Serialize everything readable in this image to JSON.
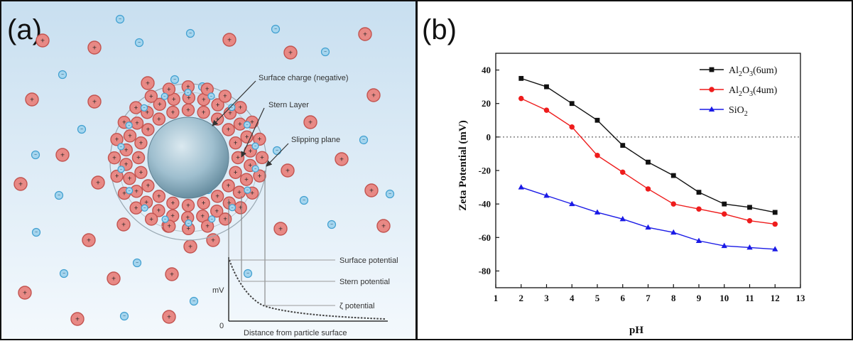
{
  "panels": {
    "a_label": "(a)",
    "b_label": "(b)"
  },
  "diagram": {
    "labels": {
      "surface_charge": "Surface charge (negative)",
      "stern_layer": "Stern Layer",
      "slipping_plane": "Slipping plane",
      "surface_potential": "Surface potential",
      "stern_potential": "Stern potential",
      "zeta_potential": "ζ potential",
      "mv": "mV",
      "zero": "0",
      "distance": "Distance from particle surface"
    },
    "plus_sign": "+",
    "minus_sign": "−",
    "colors": {
      "background_top": "#c8dff0",
      "background_bottom": "#f4f9fd",
      "cation_fill": "#e88985",
      "cation_ring": "#c25450",
      "anion_fill": "#a5d5ee",
      "anion_ring": "#3f9fd0",
      "particle": "#8fb3c4"
    }
  },
  "chart_data": {
    "type": "line",
    "title": "",
    "xlabel": "pH",
    "ylabel": "Zeta Potential (mV)",
    "xlim": [
      1,
      13
    ],
    "ylim": [
      -90,
      50
    ],
    "x_ticks": [
      1,
      2,
      3,
      4,
      5,
      6,
      7,
      8,
      9,
      10,
      11,
      12,
      13
    ],
    "y_ticks": [
      -80,
      -60,
      -40,
      -20,
      0,
      20,
      40
    ],
    "zero_reference_line": true,
    "legend_position": "top-right",
    "x": [
      2,
      3,
      4,
      5,
      6,
      7,
      8,
      9,
      10,
      11,
      12
    ],
    "series": [
      {
        "name_main": "Al",
        "name_sub1": "2",
        "name_mid": "O",
        "name_sub2": "3",
        "name_tail": "(6um)",
        "color": "#111111",
        "marker": "square",
        "values": [
          35,
          30,
          20,
          10,
          -5,
          -15,
          -23,
          -33,
          -40,
          -42,
          -45
        ]
      },
      {
        "name_main": "Al",
        "name_sub1": "2",
        "name_mid": "O",
        "name_sub2": "3",
        "name_tail": "(4um)",
        "color": "#ee1c1c",
        "marker": "circle",
        "values": [
          23,
          16,
          6,
          -11,
          -21,
          -31,
          -40,
          -43,
          -46,
          -50,
          -52
        ]
      },
      {
        "name_main": "SiO",
        "name_sub1": "2",
        "name_mid": "",
        "name_sub2": "",
        "name_tail": "",
        "color": "#1a1ae6",
        "marker": "triangle",
        "values": [
          -30,
          -35,
          -40,
          -45,
          -49,
          -54,
          -57,
          -62,
          -65,
          -66,
          -67
        ]
      }
    ]
  }
}
